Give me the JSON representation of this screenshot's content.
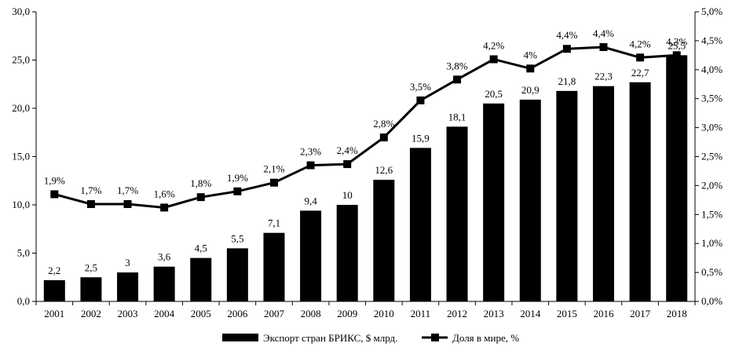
{
  "chart_data": {
    "type": "bar",
    "categories": [
      "2001",
      "2002",
      "2003",
      "2004",
      "2005",
      "2006",
      "2007",
      "2008",
      "2009",
      "2010",
      "2011",
      "2012",
      "2013",
      "2014",
      "2015",
      "2016",
      "2017",
      "2018"
    ],
    "series": [
      {
        "name": "Экспорт стран БРИКС, $ млрд.",
        "type": "bar",
        "axis": "left",
        "color": "#000000",
        "values": [
          2.2,
          2.5,
          3,
          3.6,
          4.5,
          5.5,
          7.1,
          9.4,
          10,
          12.6,
          15.9,
          18.1,
          20.5,
          20.9,
          21.8,
          22.3,
          22.7,
          25.5
        ],
        "labels": [
          "2,2",
          "2,5",
          "3",
          "3,6",
          "4,5",
          "5,5",
          "7,1",
          "9,4",
          "10",
          "12,6",
          "15,9",
          "18,1",
          "20,5",
          "20,9",
          "21,8",
          "22,3",
          "22,7",
          "25,5"
        ]
      },
      {
        "name": "Доля в мире, %",
        "type": "line",
        "axis": "right",
        "color": "#000000",
        "marker": "square",
        "values": [
          1.85,
          1.68,
          1.68,
          1.62,
          1.8,
          1.9,
          2.05,
          2.35,
          2.37,
          2.83,
          3.47,
          3.83,
          4.18,
          4.02,
          4.36,
          4.39,
          4.21,
          4.25
        ],
        "labels": [
          "1,9%",
          "1,7%",
          "1,7%",
          "1,6%",
          "1,8%",
          "1,9%",
          "2,1%",
          "2,3%",
          "2,4%",
          "2,8%",
          "3,5%",
          "3,8%",
          "4,2%",
          "4%",
          "4,4%",
          "4,4%",
          "4,2%",
          "4,3%"
        ]
      }
    ],
    "ylim_left": [
      0,
      30
    ],
    "yticks_left": [
      "0,0",
      "5,0",
      "10,0",
      "15,0",
      "20,0",
      "25,0",
      "30,0"
    ],
    "ylim_right": [
      0,
      5
    ],
    "yticks_right": [
      "0,0%",
      "0,5%",
      "1,0%",
      "1,5%",
      "2,0%",
      "2,5%",
      "3,0%",
      "3,5%",
      "4,0%",
      "4,5%",
      "5,0%"
    ],
    "grid": false,
    "legend_position": "bottom-center",
    "title": "",
    "xlabel": "",
    "ylabel": ""
  }
}
